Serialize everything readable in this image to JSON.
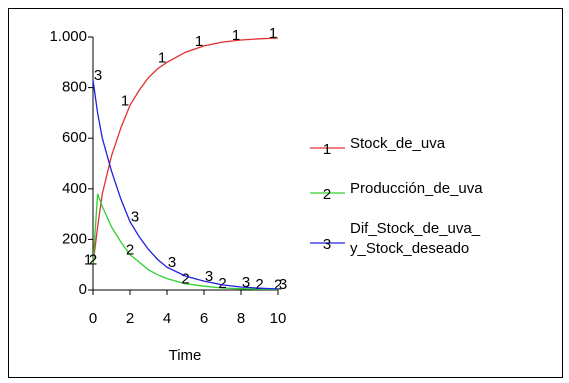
{
  "chart_data": {
    "type": "line",
    "xlabel": "Time",
    "x": [
      0,
      0.25,
      0.5,
      1,
      1.5,
      2,
      2.5,
      3,
      3.5,
      4,
      5,
      6,
      7,
      8,
      9,
      10
    ],
    "series": [
      {
        "name": "Stock_de_uva",
        "marker": "1",
        "color": "#e03030",
        "values": [
          100,
          250,
          380,
          530,
          640,
          730,
          790,
          840,
          875,
          900,
          940,
          965,
          980,
          988,
          993,
          996
        ]
      },
      {
        "name": "Producción_de_uva",
        "marker": "2",
        "color": "#30d030",
        "values": [
          100,
          380,
          330,
          250,
          190,
          140,
          110,
          80,
          60,
          45,
          25,
          15,
          8,
          5,
          3,
          2
        ]
      },
      {
        "name": "Dif_Stock_de_uva_\ny_Stock_deseado",
        "marker": "3",
        "color": "#2020e0",
        "values": [
          830,
          700,
          600,
          470,
          360,
          270,
          210,
          160,
          120,
          90,
          55,
          35,
          20,
          12,
          7,
          4
        ]
      }
    ],
    "xlim": [
      0,
      10
    ],
    "xticks": [
      0,
      2,
      4,
      6,
      8,
      10
    ],
    "ylim": [
      0,
      1000
    ],
    "yticks": [
      0,
      200,
      400,
      600,
      800,
      {
        "value": 1000,
        "label": "1.000"
      }
    ]
  }
}
